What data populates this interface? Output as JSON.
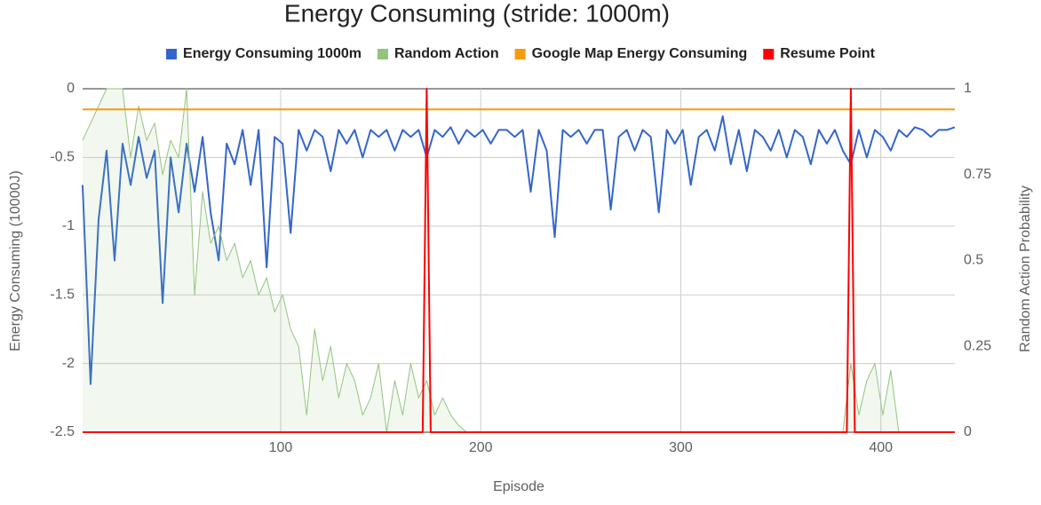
{
  "chart_data": {
    "type": "line",
    "title": "Energy Consuming (stride: 1000m)",
    "x_label": "Episode",
    "y_label": "Energy Consuming (10000J)",
    "y2_label": "Random Action Probability",
    "xlim": [
      1,
      437
    ],
    "ylim": [
      -2.5,
      0
    ],
    "y2lim": [
      0,
      1
    ],
    "xticks": [
      100,
      200,
      300,
      400
    ],
    "yticks": [
      0,
      -0.5,
      -1,
      -1.5,
      -2,
      -2.5
    ],
    "y2ticks": [
      1,
      0.75,
      0.5,
      0.25,
      0
    ],
    "grid": true,
    "legend": "top",
    "x": [
      1,
      5,
      9,
      13,
      17,
      21,
      25,
      29,
      33,
      37,
      41,
      45,
      49,
      53,
      57,
      61,
      65,
      69,
      73,
      77,
      81,
      85,
      89,
      93,
      97,
      101,
      105,
      109,
      113,
      117,
      121,
      125,
      129,
      133,
      137,
      141,
      145,
      149,
      153,
      157,
      161,
      165,
      169,
      173,
      177,
      181,
      185,
      189,
      193,
      197,
      201,
      205,
      209,
      213,
      217,
      221,
      225,
      229,
      233,
      237,
      241,
      245,
      249,
      253,
      257,
      261,
      265,
      269,
      273,
      277,
      281,
      285,
      289,
      293,
      297,
      301,
      305,
      309,
      313,
      317,
      321,
      325,
      329,
      333,
      337,
      341,
      345,
      349,
      353,
      357,
      361,
      365,
      369,
      373,
      377,
      381,
      385,
      389,
      393,
      397,
      401,
      405,
      409,
      413,
      417,
      421,
      425,
      429,
      433,
      437
    ],
    "series": [
      {
        "name": "Energy Consuming 1000m",
        "color": "#3366cc",
        "values": [
          -0.7,
          -2.15,
          -0.95,
          -0.45,
          -1.25,
          -0.4,
          -0.7,
          -0.35,
          -0.65,
          -0.45,
          -1.56,
          -0.5,
          -0.9,
          -0.4,
          -0.75,
          -0.35,
          -0.9,
          -1.25,
          -0.4,
          -0.55,
          -0.3,
          -0.7,
          -0.3,
          -1.3,
          -0.35,
          -0.4,
          -1.05,
          -0.3,
          -0.45,
          -0.3,
          -0.35,
          -0.6,
          -0.3,
          -0.4,
          -0.3,
          -0.5,
          -0.3,
          -0.35,
          -0.3,
          -0.45,
          -0.3,
          -0.35,
          -0.3,
          -0.5,
          -0.3,
          -0.35,
          -0.28,
          -0.4,
          -0.3,
          -0.35,
          -0.3,
          -0.4,
          -0.3,
          -0.3,
          -0.35,
          -0.3,
          -0.75,
          -0.3,
          -0.45,
          -1.08,
          -0.3,
          -0.35,
          -0.3,
          -0.4,
          -0.3,
          -0.3,
          -0.88,
          -0.35,
          -0.3,
          -0.45,
          -0.3,
          -0.35,
          -0.9,
          -0.3,
          -0.4,
          -0.3,
          -0.7,
          -0.35,
          -0.3,
          -0.45,
          -0.2,
          -0.55,
          -0.3,
          -0.6,
          -0.3,
          -0.35,
          -0.45,
          -0.3,
          -0.5,
          -0.3,
          -0.35,
          -0.55,
          -0.3,
          -0.4,
          -0.3,
          -0.45,
          -0.55,
          -0.3,
          -0.5,
          -0.3,
          -0.35,
          -0.45,
          -0.3,
          -0.35,
          -0.28,
          -0.3,
          -0.35,
          -0.3,
          -0.3,
          -0.28
        ]
      },
      {
        "name": "Random Action",
        "color": "#93c47d",
        "axis": "y2",
        "area": true,
        "values": [
          0.85,
          0.9,
          0.95,
          1,
          1,
          1,
          0.8,
          0.95,
          0.85,
          0.9,
          0.75,
          0.85,
          0.8,
          1,
          0.4,
          0.7,
          0.55,
          0.6,
          0.5,
          0.55,
          0.45,
          0.5,
          0.4,
          0.45,
          0.35,
          0.4,
          0.3,
          0.25,
          0.05,
          0.3,
          0.15,
          0.25,
          0.1,
          0.2,
          0.15,
          0.05,
          0.1,
          0.2,
          0,
          0.15,
          0.05,
          0.2,
          0.1,
          0.15,
          0.05,
          0.1,
          0.05,
          0.02,
          0,
          0,
          0,
          0,
          0,
          0,
          0,
          0,
          0,
          0,
          0,
          0,
          0,
          0,
          0,
          0,
          0,
          0,
          0,
          0,
          0,
          0,
          0,
          0,
          0,
          0,
          0,
          0,
          0,
          0,
          0,
          0,
          0,
          0,
          0,
          0,
          0,
          0,
          0,
          0,
          0,
          0,
          0,
          0,
          0,
          0,
          0,
          0,
          0.2,
          0.05,
          0.15,
          0.2,
          0.05,
          0.18,
          0,
          0,
          0,
          0,
          0,
          0,
          0,
          0
        ]
      },
      {
        "name": "Google Map Energy Consuming",
        "color": "#f59b0c",
        "x": [
          1,
          437
        ],
        "values": [
          -0.15,
          -0.15
        ]
      },
      {
        "name": "Resume Point",
        "color": "#ff0000",
        "axis": "y2",
        "x": [
          1,
          171,
          173,
          175,
          383,
          385,
          387,
          437
        ],
        "values": [
          0,
          0,
          1,
          0,
          0,
          1,
          0,
          0
        ]
      }
    ]
  }
}
